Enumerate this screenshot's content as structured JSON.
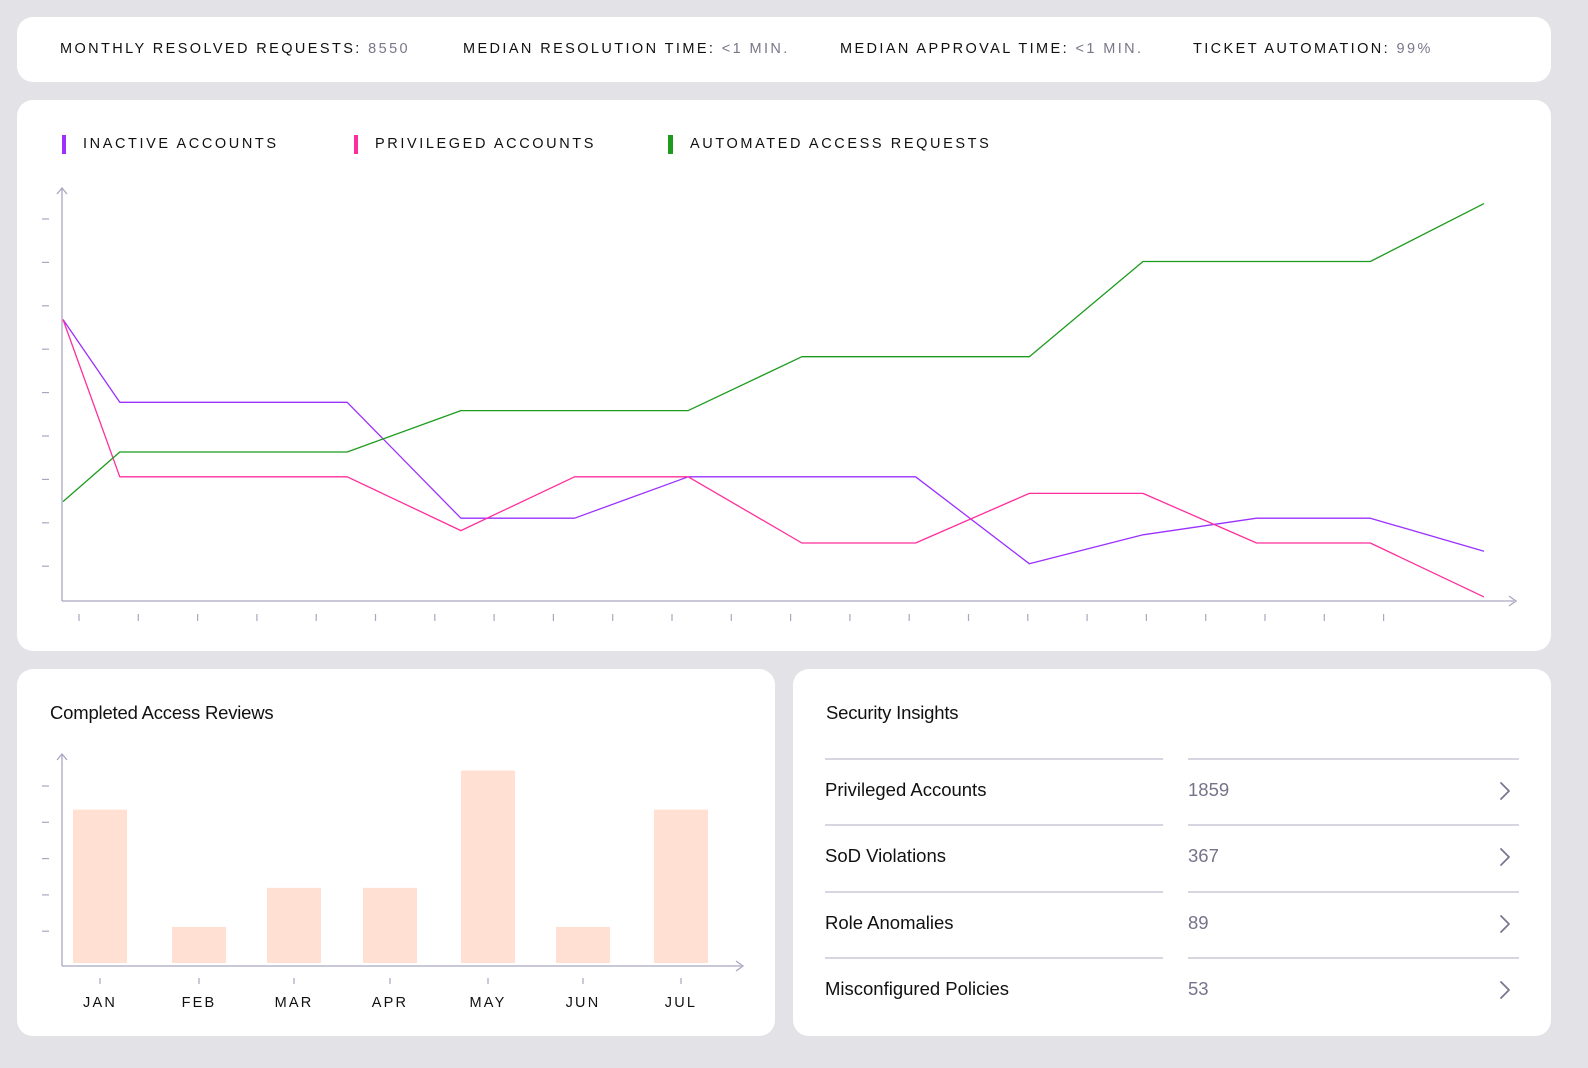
{
  "stats": [
    {
      "label": "MONTHLY RESOLVED REQUESTS:",
      "value": "8550"
    },
    {
      "label": "MEDIAN RESOLUTION TIME:",
      "value": "<1 MIN."
    },
    {
      "label": "MEDIAN APPROVAL TIME:",
      "value": "<1 MIN."
    },
    {
      "label": "TICKET AUTOMATION:",
      "value": "99%"
    }
  ],
  "line_chart": {
    "legend": [
      {
        "label": "INACTIVE ACCOUNTS",
        "color": "#9b30ff"
      },
      {
        "label": "PRIVILEGED ACCOUNTS",
        "color": "#ff2e9c"
      },
      {
        "label": "AUTOMATED ACCESS REQUESTS",
        "color": "#1e9b1e"
      }
    ]
  },
  "bar_chart_title": "Completed Access Reviews",
  "security_insights": {
    "title": "Security Insights",
    "rows": [
      {
        "label": "Privileged Accounts",
        "value": "1859"
      },
      {
        "label": "SoD Violations",
        "value": "367"
      },
      {
        "label": "Role Anomalies",
        "value": "89"
      },
      {
        "label": "Misconfigured Policies",
        "value": "53"
      }
    ]
  },
  "chart_data": [
    {
      "type": "line",
      "title": "",
      "xlabel": "",
      "ylabel": "",
      "ylim": [
        0,
        10
      ],
      "grid": false,
      "legend_position": "top-left",
      "x": [
        0,
        1,
        2,
        3,
        4,
        5,
        6,
        7,
        8,
        9,
        10,
        11,
        12,
        13,
        14,
        15,
        16,
        17,
        18,
        19,
        20,
        21,
        22,
        23,
        24,
        25
      ],
      "series": [
        {
          "name": "INACTIVE ACCOUNTS",
          "color": "#9b30ff",
          "points": [
            [
              0,
              6.8
            ],
            [
              1,
              4.8
            ],
            [
              5,
              4.8
            ],
            [
              7,
              2.0
            ],
            [
              9,
              2.0
            ],
            [
              11,
              3.0
            ],
            [
              15,
              3.0
            ],
            [
              17,
              0.9
            ],
            [
              19,
              1.6
            ],
            [
              21,
              2.0
            ],
            [
              23,
              2.0
            ],
            [
              25,
              1.2
            ]
          ]
        },
        {
          "name": "PRIVILEGED ACCOUNTS",
          "color": "#ff2e9c",
          "points": [
            [
              0,
              6.8
            ],
            [
              1,
              3.0
            ],
            [
              5,
              3.0
            ],
            [
              7,
              1.7
            ],
            [
              9,
              3.0
            ],
            [
              11,
              3.0
            ],
            [
              13,
              1.4
            ],
            [
              15,
              1.4
            ],
            [
              17,
              2.6
            ],
            [
              19,
              2.6
            ],
            [
              21,
              1.4
            ],
            [
              23,
              1.4
            ],
            [
              25,
              0.1
            ]
          ]
        },
        {
          "name": "AUTOMATED ACCESS REQUESTS",
          "color": "#1e9b1e",
          "points": [
            [
              0,
              2.4
            ],
            [
              1,
              3.6
            ],
            [
              5,
              3.6
            ],
            [
              7,
              4.6
            ],
            [
              11,
              4.6
            ],
            [
              13,
              5.9
            ],
            [
              17,
              5.9
            ],
            [
              19,
              8.2
            ],
            [
              23,
              8.2
            ],
            [
              25,
              9.6
            ]
          ]
        }
      ]
    },
    {
      "type": "bar",
      "title": "Completed Access Reviews",
      "categories": [
        "JAN",
        "FEB",
        "MAR",
        "APR",
        "MAY",
        "JUN",
        "JUL"
      ],
      "values": [
        4,
        1,
        2,
        2,
        5,
        1,
        4
      ],
      "ylim": [
        0,
        5.5
      ],
      "color": "#ffe0d3"
    }
  ]
}
